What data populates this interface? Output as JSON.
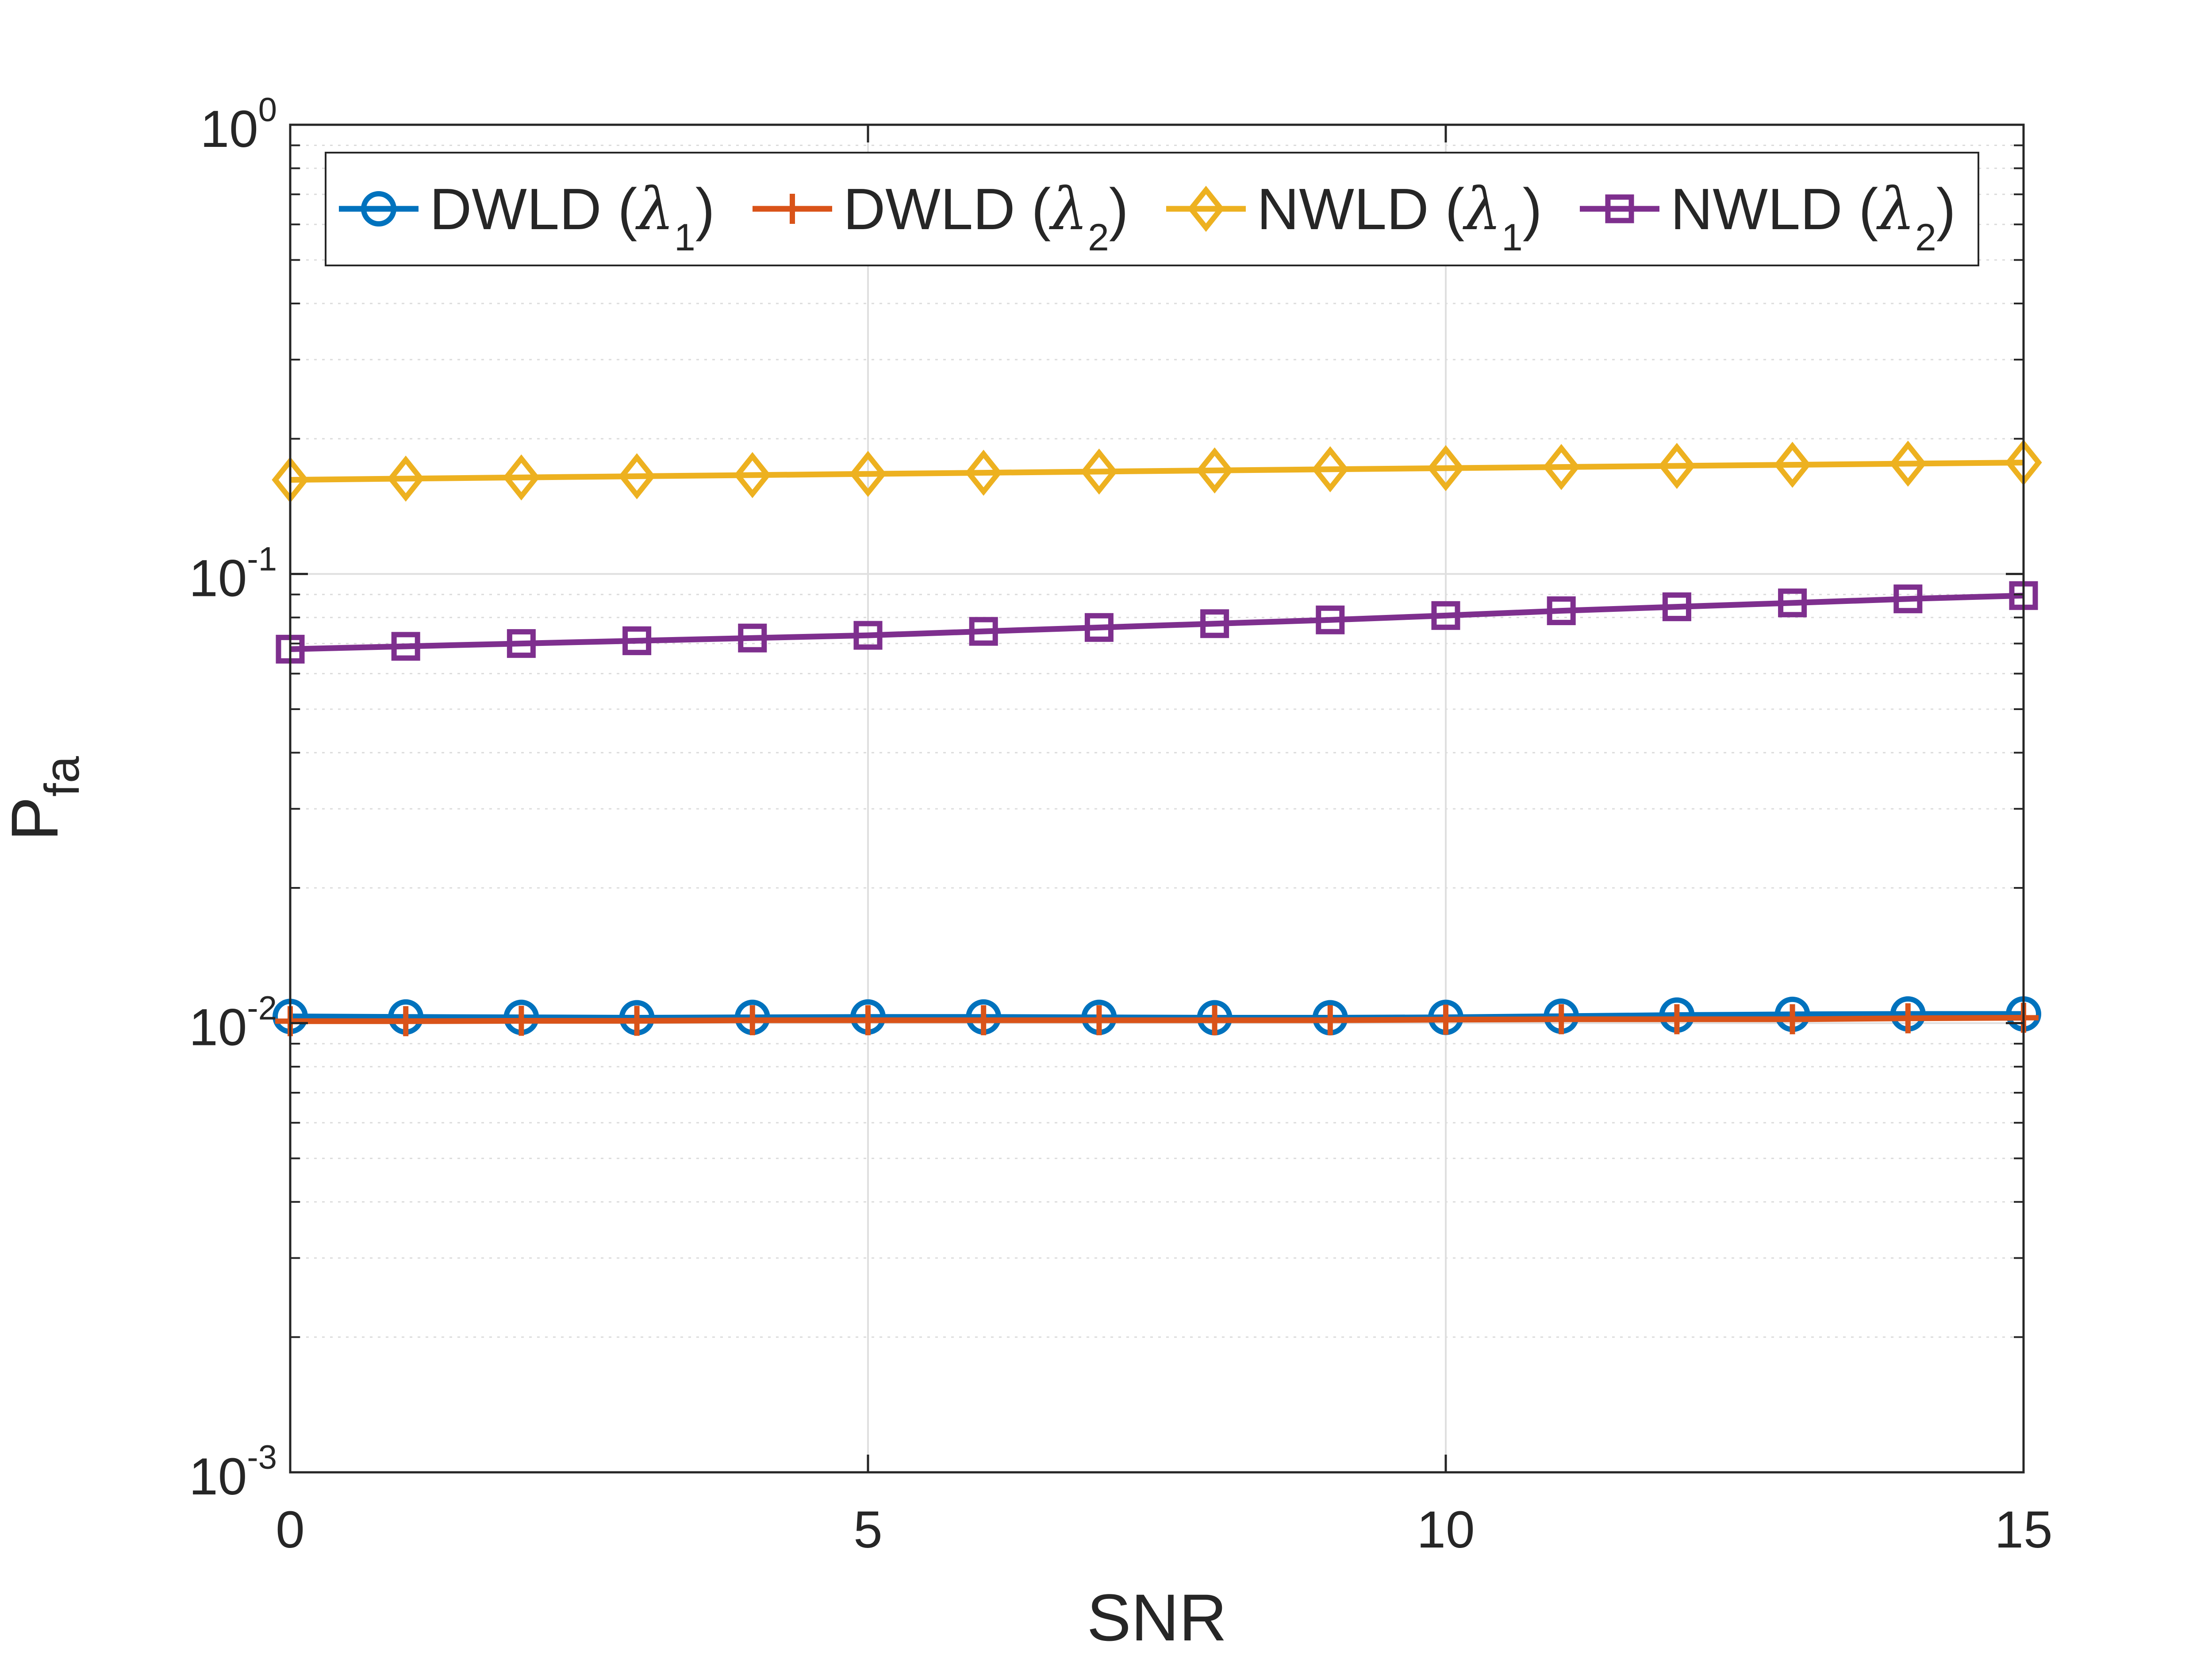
{
  "chart_data": {
    "type": "line",
    "xlabel": "SNR",
    "ylabel": "P",
    "ylabel_subscript": "fa",
    "yscale": "log",
    "xlim": [
      0,
      15
    ],
    "ylim": [
      0.001,
      1
    ],
    "grid": true,
    "legend_location": "top",
    "x_ticks": [
      {
        "value": 0,
        "label": "0"
      },
      {
        "value": 5,
        "label": "5"
      },
      {
        "value": 10,
        "label": "10"
      },
      {
        "value": 15,
        "label": "15"
      }
    ],
    "y_ticks": [
      {
        "value": 0.001,
        "base": "10",
        "exp": "-3"
      },
      {
        "value": 0.01,
        "base": "10",
        "exp": "-2"
      },
      {
        "value": 0.1,
        "base": "10",
        "exp": "-1"
      },
      {
        "value": 1,
        "base": "10",
        "exp": "0"
      }
    ],
    "x": [
      0,
      1,
      2,
      3,
      4,
      5,
      6,
      7,
      8,
      9,
      10,
      11,
      12,
      13,
      14,
      15
    ],
    "series": [
      {
        "name": "DWLD",
        "lambda_index": "1",
        "marker": "circle",
        "color": "#0072BD",
        "values": [
          0.01035,
          0.01032,
          0.0103,
          0.01028,
          0.0103,
          0.01032,
          0.01032,
          0.0103,
          0.01028,
          0.01028,
          0.0103,
          0.01036,
          0.01042,
          0.01046,
          0.01048,
          0.01048
        ]
      },
      {
        "name": "DWLD",
        "lambda_index": "2",
        "marker": "plus",
        "color": "#D95319",
        "values": [
          0.0101,
          0.0101,
          0.01012,
          0.01012,
          0.01015,
          0.01015,
          0.01015,
          0.01015,
          0.01015,
          0.01015,
          0.01018,
          0.0102,
          0.0102,
          0.0102,
          0.01025,
          0.01028
        ]
      },
      {
        "name": "NWLD",
        "lambda_index": "1",
        "marker": "diamond",
        "color": "#EDB120",
        "values": [
          0.162,
          0.163,
          0.164,
          0.165,
          0.166,
          0.167,
          0.168,
          0.169,
          0.17,
          0.171,
          0.172,
          0.173,
          0.174,
          0.175,
          0.176,
          0.177
        ]
      },
      {
        "name": "NWLD",
        "lambda_index": "2",
        "marker": "square",
        "color": "#7E2F8E",
        "values": [
          0.068,
          0.069,
          0.07,
          0.071,
          0.072,
          0.073,
          0.0745,
          0.076,
          0.0775,
          0.079,
          0.0808,
          0.0828,
          0.0845,
          0.0862,
          0.088,
          0.0895
        ]
      }
    ]
  }
}
